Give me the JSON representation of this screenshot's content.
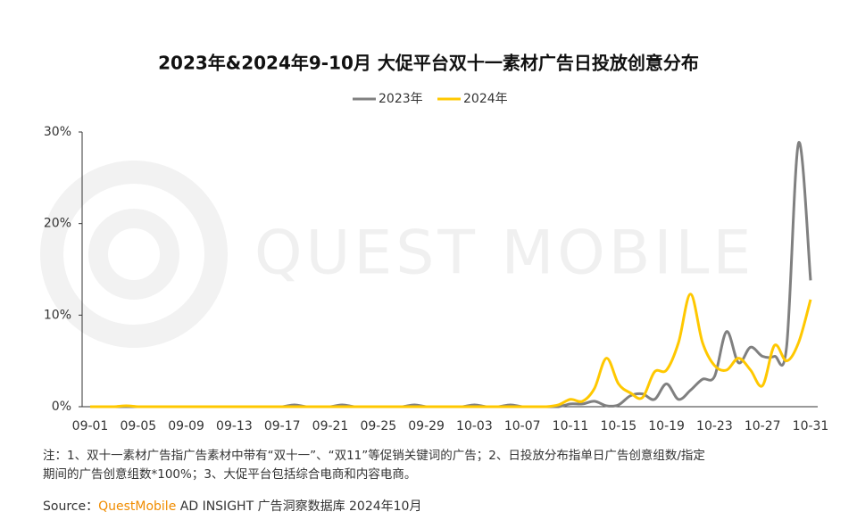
{
  "chart_data": {
    "type": "line",
    "title": "2023年&2024年9-10月 大促平台双十一素材广告日投放创意分布",
    "watermark": "QUEST MOBILE",
    "categories": [
      "09-01",
      null,
      null,
      null,
      "09-05",
      null,
      null,
      null,
      "09-09",
      null,
      null,
      null,
      "09-13",
      null,
      null,
      null,
      "09-17",
      null,
      null,
      null,
      "09-21",
      null,
      null,
      null,
      "09-25",
      null,
      null,
      null,
      "09-29",
      null,
      null,
      null,
      "10-03",
      null,
      null,
      null,
      "10-07",
      null,
      null,
      null,
      "10-11",
      null,
      null,
      null,
      "10-15",
      null,
      null,
      null,
      "10-19",
      null,
      null,
      null,
      "10-23",
      null,
      null,
      null,
      "10-27",
      null,
      null,
      null,
      "10-31"
    ],
    "series": [
      {
        "name": "2023年",
        "color": "#808080",
        "values": [
          0,
          0,
          0,
          0,
          0,
          0,
          0,
          0,
          0,
          0,
          0,
          0,
          0,
          0,
          0,
          0,
          0,
          0.2,
          0,
          0,
          0,
          0.2,
          0,
          0,
          0,
          0,
          0,
          0.2,
          0,
          0,
          0,
          0,
          0.2,
          0,
          0,
          0.2,
          0,
          0,
          0,
          0,
          0.3,
          0.3,
          0.6,
          0.1,
          0.2,
          1.2,
          1.4,
          0.8,
          2.5,
          0.8,
          1.8,
          3.0,
          3.3,
          8.2,
          4.8,
          6.5,
          5.5,
          5.5,
          6.5,
          28.8,
          13.8
        ]
      },
      {
        "name": "2024年",
        "color": "#ffc800",
        "values": [
          0,
          0,
          0,
          0.1,
          0,
          0,
          0,
          0,
          0,
          0,
          0,
          0,
          0,
          0,
          0,
          0,
          0,
          0,
          0,
          0,
          0,
          0,
          0,
          0,
          0,
          0,
          0,
          0,
          0,
          0,
          0,
          0,
          0,
          0,
          0,
          0,
          0,
          0,
          0,
          0.2,
          0.8,
          0.6,
          2.0,
          5.3,
          2.5,
          1.5,
          1.0,
          3.8,
          4.0,
          7.0,
          12.3,
          7.0,
          4.5,
          4.0,
          5.3,
          4.0,
          2.3,
          6.7,
          5.0,
          7.0,
          11.7
        ]
      }
    ],
    "ylim": [
      0,
      30
    ],
    "yticks": [
      {
        "value": 0,
        "label": "0%"
      },
      {
        "value": 10,
        "label": "10%"
      },
      {
        "value": 20,
        "label": "20%"
      },
      {
        "value": 30,
        "label": "30%"
      }
    ],
    "grid": false,
    "legend": "top",
    "notes": [
      "注：1、双十一素材广告指广告素材中带有“双十一”、“双11”等促销关键词的广告；2、日投放分布指单日广告创意组数/指定",
      "期间的广告创意组数*100%；3、大促平台包括综合电商和内容电商。"
    ],
    "source": {
      "label": "Source：",
      "brand": "QuestMobile",
      "text": " AD INSIGHT 广告洞察数据库 2024年10月"
    }
  }
}
